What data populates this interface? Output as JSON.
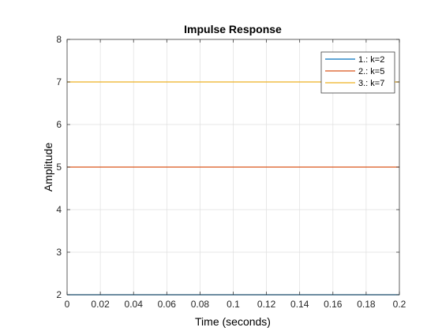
{
  "chart_data": {
    "type": "line",
    "title": "Impulse Response",
    "xlabel": "Time (seconds)",
    "ylabel": "Amplitude",
    "xlim": [
      0,
      0.2
    ],
    "ylim": [
      2,
      8
    ],
    "xticks": [
      0,
      0.02,
      0.04,
      0.06,
      0.08,
      0.1,
      0.12,
      0.14,
      0.16,
      0.18,
      0.2
    ],
    "xtick_labels": [
      "0",
      "0.02",
      "0.04",
      "0.06",
      "0.08",
      "0.1",
      "0.12",
      "0.14",
      "0.16",
      "0.18",
      "0.2"
    ],
    "yticks": [
      2,
      3,
      4,
      5,
      6,
      7,
      8
    ],
    "ytick_labels": [
      "2",
      "3",
      "4",
      "5",
      "6",
      "7",
      "8"
    ],
    "grid": true,
    "legend_position": "top-right",
    "series": [
      {
        "name": "1.: k=2",
        "color": "#0072bd",
        "x": [
          0,
          0.2
        ],
        "values": [
          2,
          2
        ]
      },
      {
        "name": "2.: k=5",
        "color": "#d95319",
        "x": [
          0,
          0.2
        ],
        "values": [
          5,
          5
        ]
      },
      {
        "name": "3.: k=7",
        "color": "#edb120",
        "x": [
          0,
          0.2
        ],
        "values": [
          7,
          7
        ]
      }
    ]
  }
}
